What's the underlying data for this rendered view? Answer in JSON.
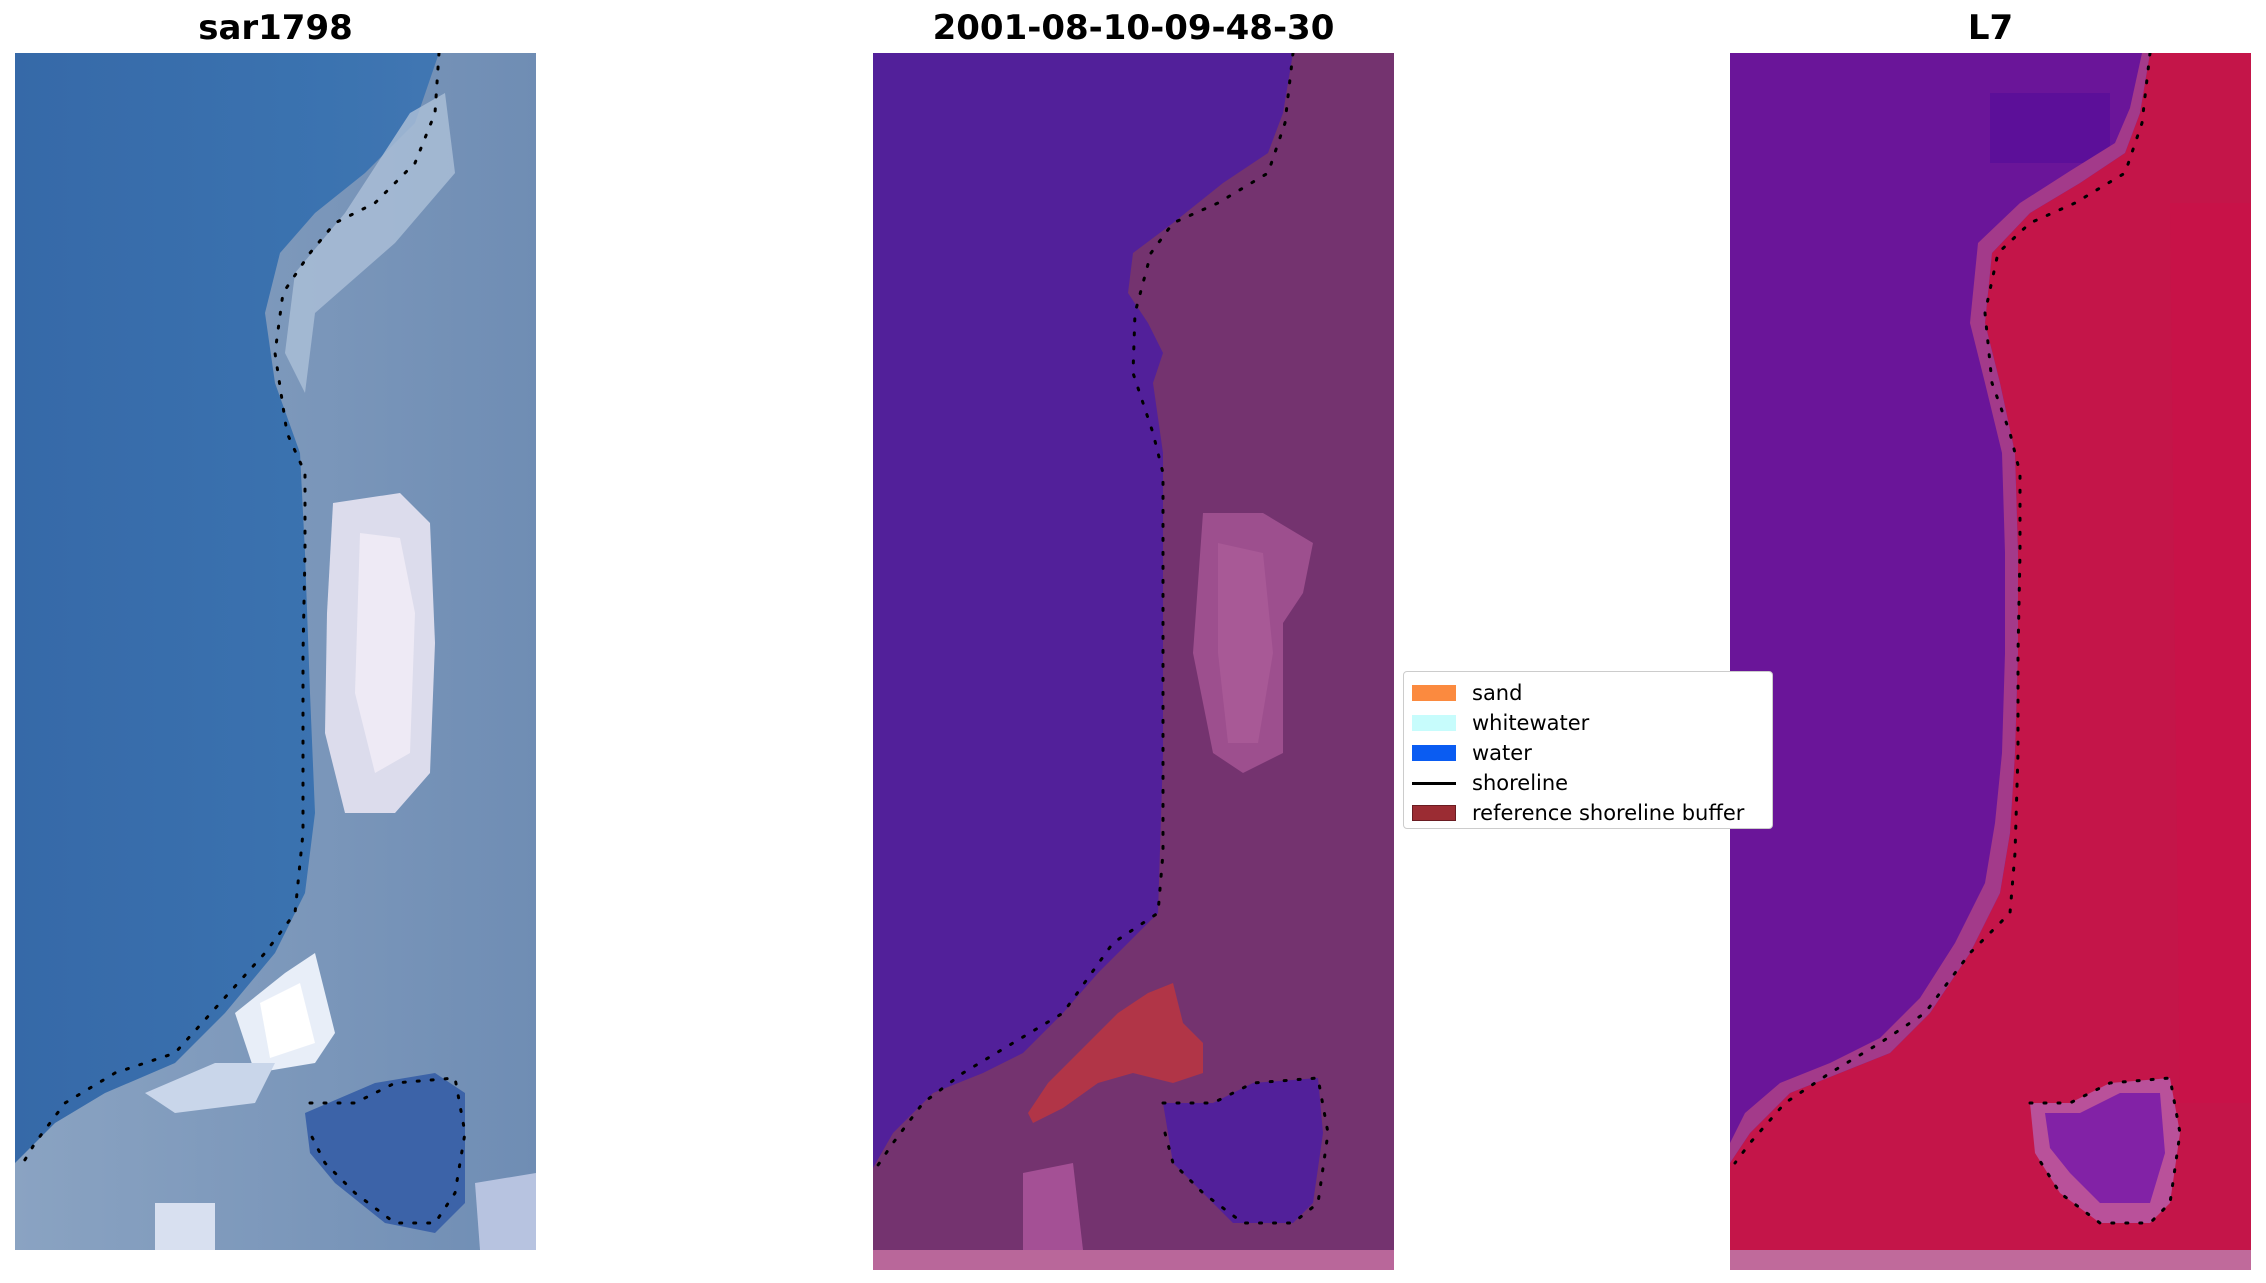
{
  "panels": [
    {
      "title": "sar1798",
      "type": "rgb-satellite-image"
    },
    {
      "title": "2001-08-10-09-48-30",
      "type": "classified-image"
    },
    {
      "title": "L7",
      "type": "index-image"
    }
  ],
  "legend": {
    "items": [
      {
        "label": "sand",
        "color": "#fb8a3f",
        "kind": "patch"
      },
      {
        "label": "whitewater",
        "color": "#c7fcfc",
        "kind": "patch"
      },
      {
        "label": "water",
        "color": "#0a5cf2",
        "kind": "patch"
      },
      {
        "label": "shoreline",
        "color": "#000000",
        "kind": "line"
      },
      {
        "label": "reference shoreline buffer",
        "color": "#9b2c33",
        "kind": "patch"
      }
    ]
  },
  "colors": {
    "satellite_water": "#3a6fae",
    "satellite_land": "#7d95b8",
    "class_water": "#52209a",
    "class_land": "#74336f",
    "class_buffer": "#b13547",
    "index_water": "#6a1599",
    "index_land": "#c41549",
    "shoreline_dots": "#000000"
  }
}
